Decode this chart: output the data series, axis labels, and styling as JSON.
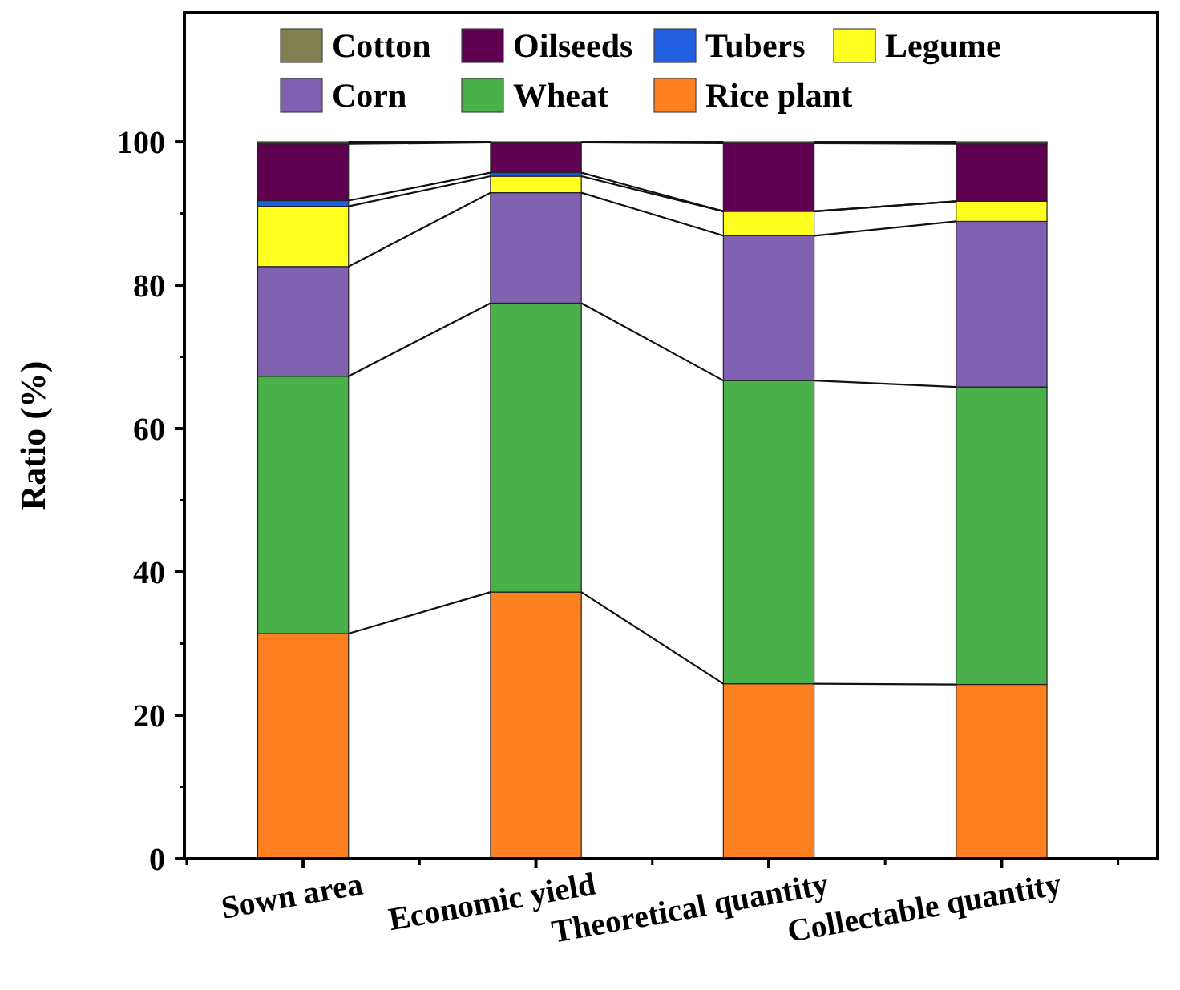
{
  "chart_data": {
    "type": "bar",
    "stacked": true,
    "ylabel": "Ratio (%)",
    "categories": [
      "Sown area",
      "Economic yield",
      "Theoretical quantity",
      "Collectable quantity"
    ],
    "ylim": [
      0,
      118
    ],
    "yticks": [
      0,
      20,
      40,
      60,
      80,
      100
    ],
    "grid": false,
    "legend": "top",
    "series": [
      {
        "name": "Rice plant",
        "color": "#ff8020",
        "values": [
          31.4,
          37.2,
          24.4,
          24.3
        ]
      },
      {
        "name": "Wheat",
        "color": "#4ab04a",
        "values": [
          35.9,
          40.3,
          42.3,
          41.5
        ]
      },
      {
        "name": "Corn",
        "color": "#8060b0",
        "values": [
          15.3,
          15.4,
          20.2,
          23.1
        ]
      },
      {
        "name": "Legume",
        "color": "#ffff20",
        "values": [
          8.4,
          2.3,
          3.4,
          2.8
        ]
      },
      {
        "name": "Tubers",
        "color": "#2060e0",
        "values": [
          0.8,
          0.5,
          null,
          null
        ]
      },
      {
        "name": "Oilseeds",
        "color": "#600050",
        "values": [
          7.9,
          4.2,
          9.5,
          8.0
        ]
      },
      {
        "name": "Cotton",
        "color": "#808050",
        "values": [
          0.3,
          0.1,
          0.2,
          0.3
        ]
      }
    ]
  }
}
